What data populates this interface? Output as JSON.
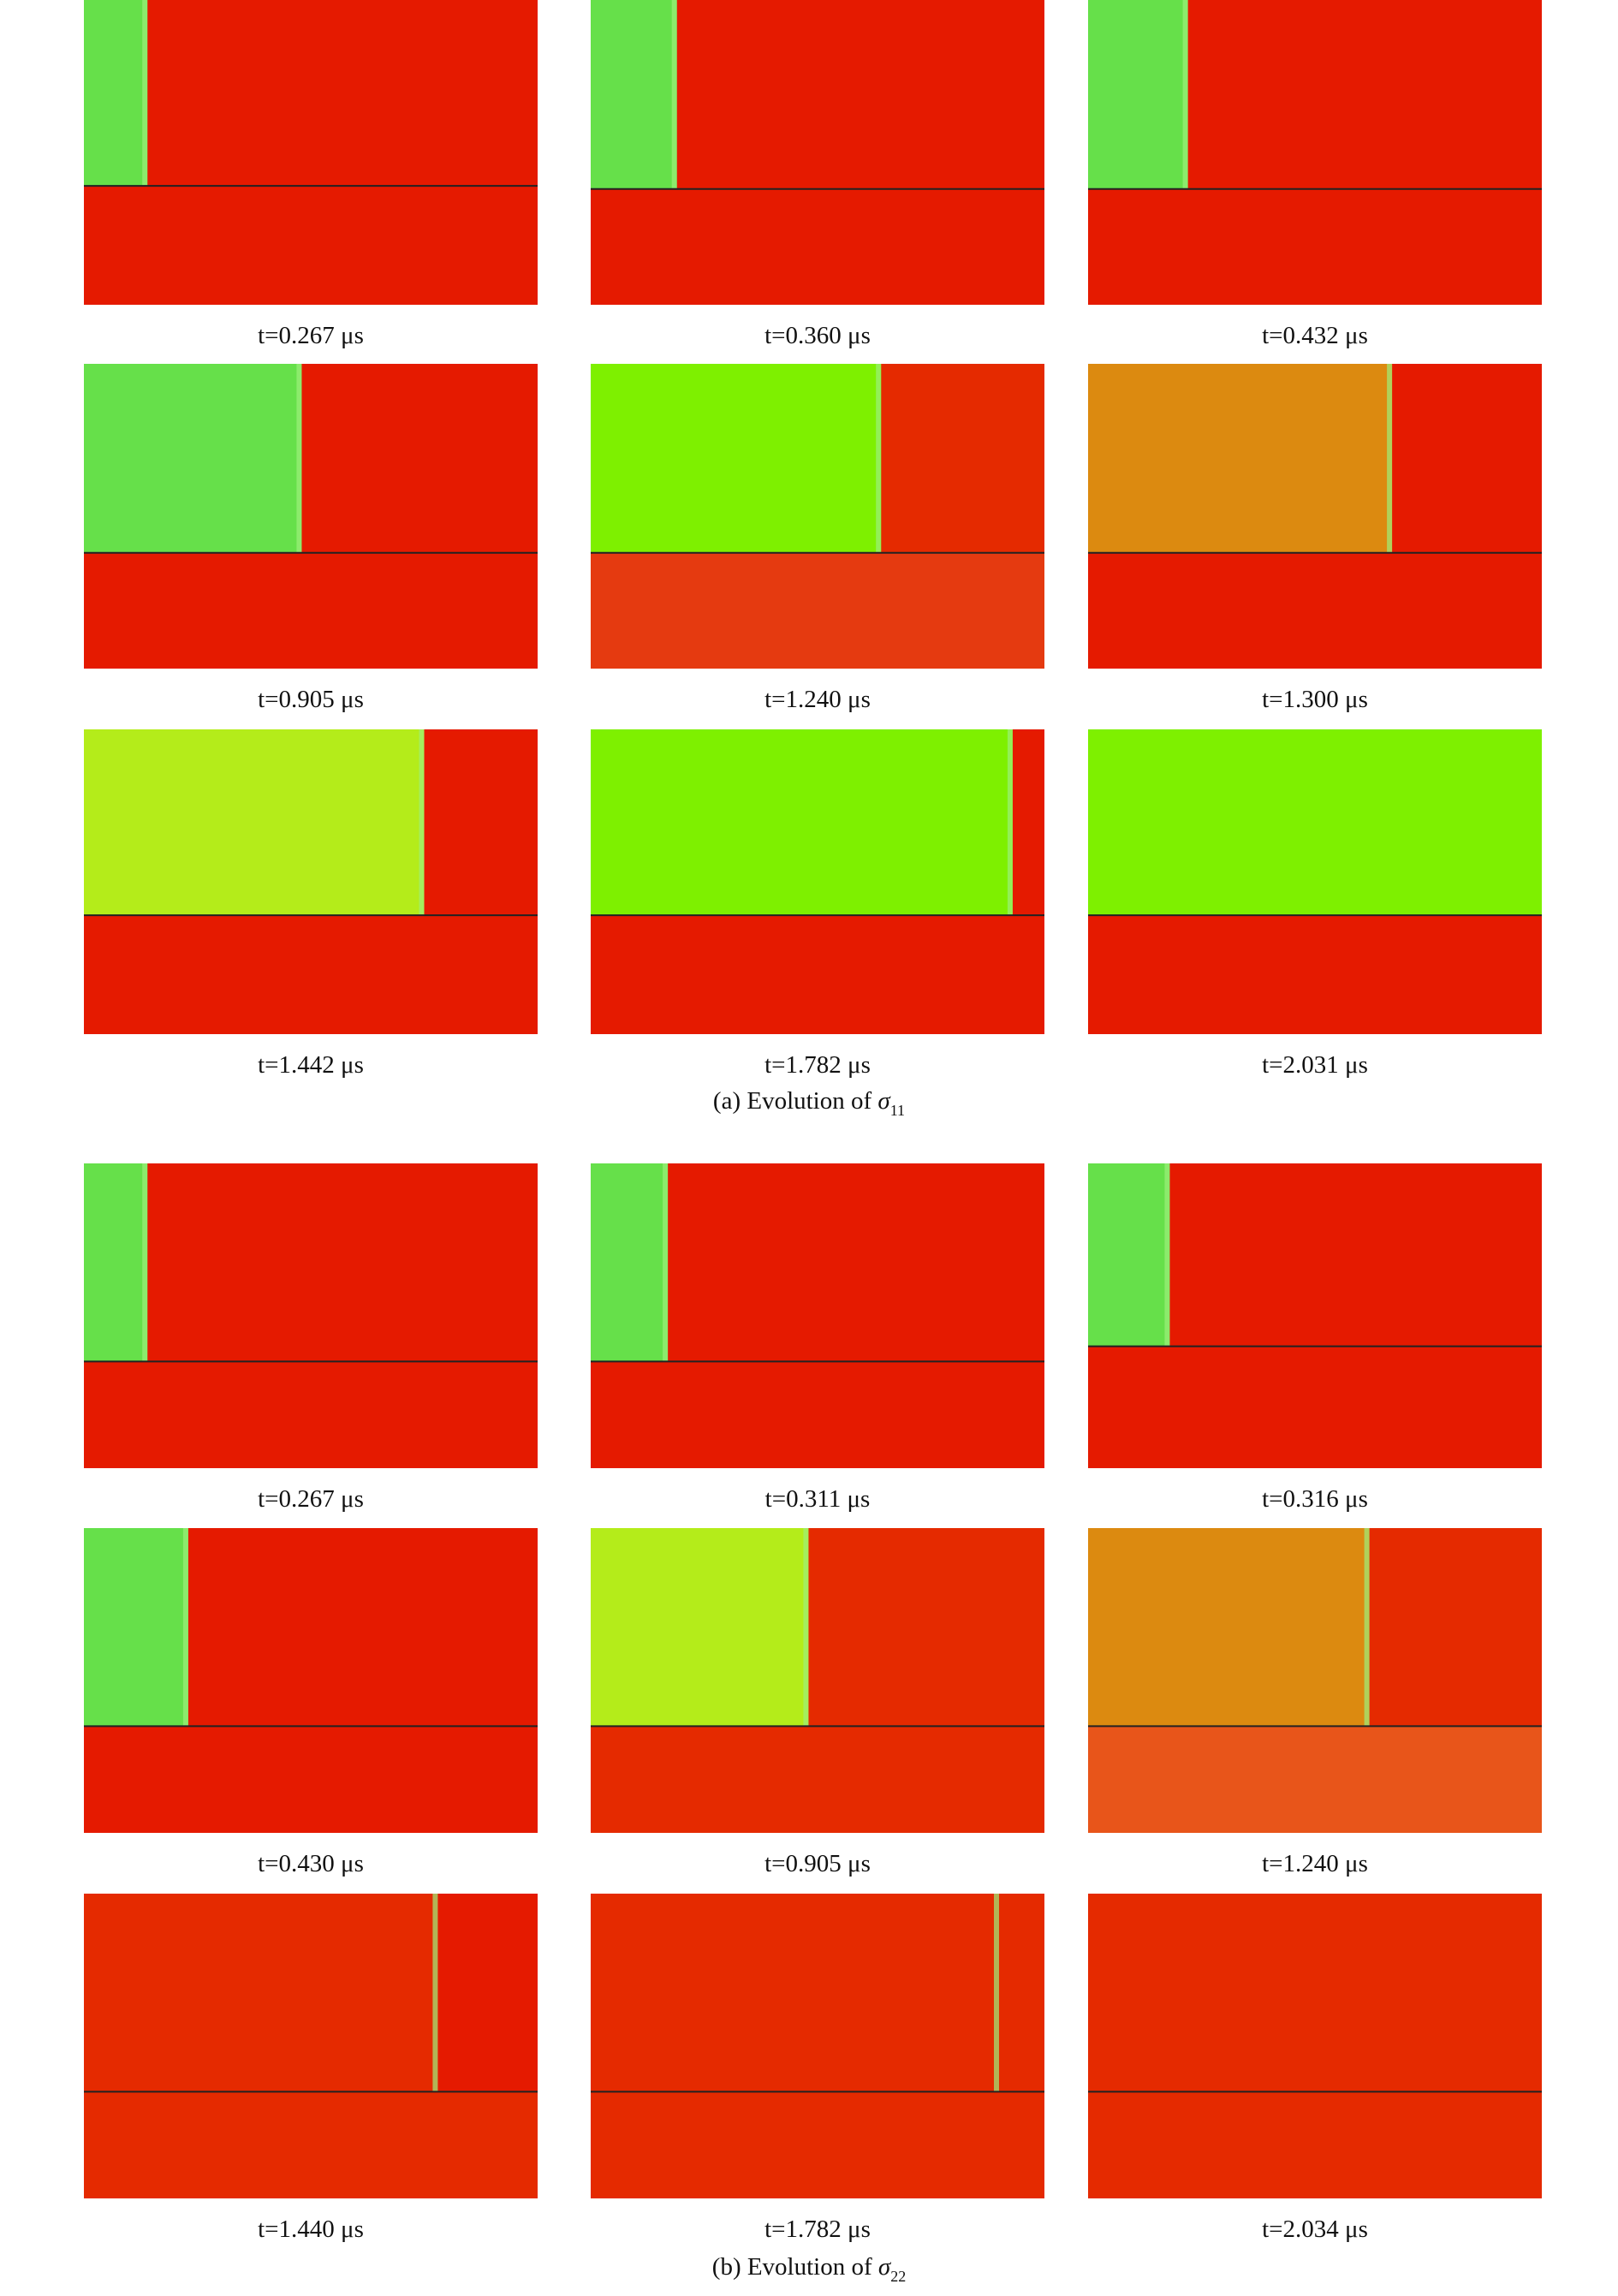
{
  "figures": [
    {
      "panels": [
        {
          "label": "t=0.267 μs"
        },
        {
          "label": "t=0.360 μs"
        },
        {
          "label": "t=0.432 μs"
        },
        {
          "label": "t=0.905 μs"
        },
        {
          "label": "t=1.240 μs"
        },
        {
          "label": "t=1.300 μs"
        },
        {
          "label": "t=1.442 μs"
        },
        {
          "label": "t=1.782 μs"
        },
        {
          "label": "t=2.031 μs"
        }
      ],
      "caption": {
        "text": "(a) Evolution of ",
        "symbol": "σ",
        "subscript": "11"
      }
    },
    {
      "panels": [
        {
          "label": "t=0.267 μs"
        },
        {
          "label": "t=0.311 μs"
        },
        {
          "label": "t=0.316 μs"
        },
        {
          "label": "t=0.430 μs"
        },
        {
          "label": "t=0.905 μs"
        },
        {
          "label": "t=1.240 μs"
        },
        {
          "label": "t=1.440 μs"
        },
        {
          "label": "t=1.782 μs"
        },
        {
          "label": "t=2.034 μs"
        }
      ],
      "caption": {
        "text": "(b) Evolution of ",
        "symbol": "σ",
        "subscript": "22"
      }
    }
  ]
}
